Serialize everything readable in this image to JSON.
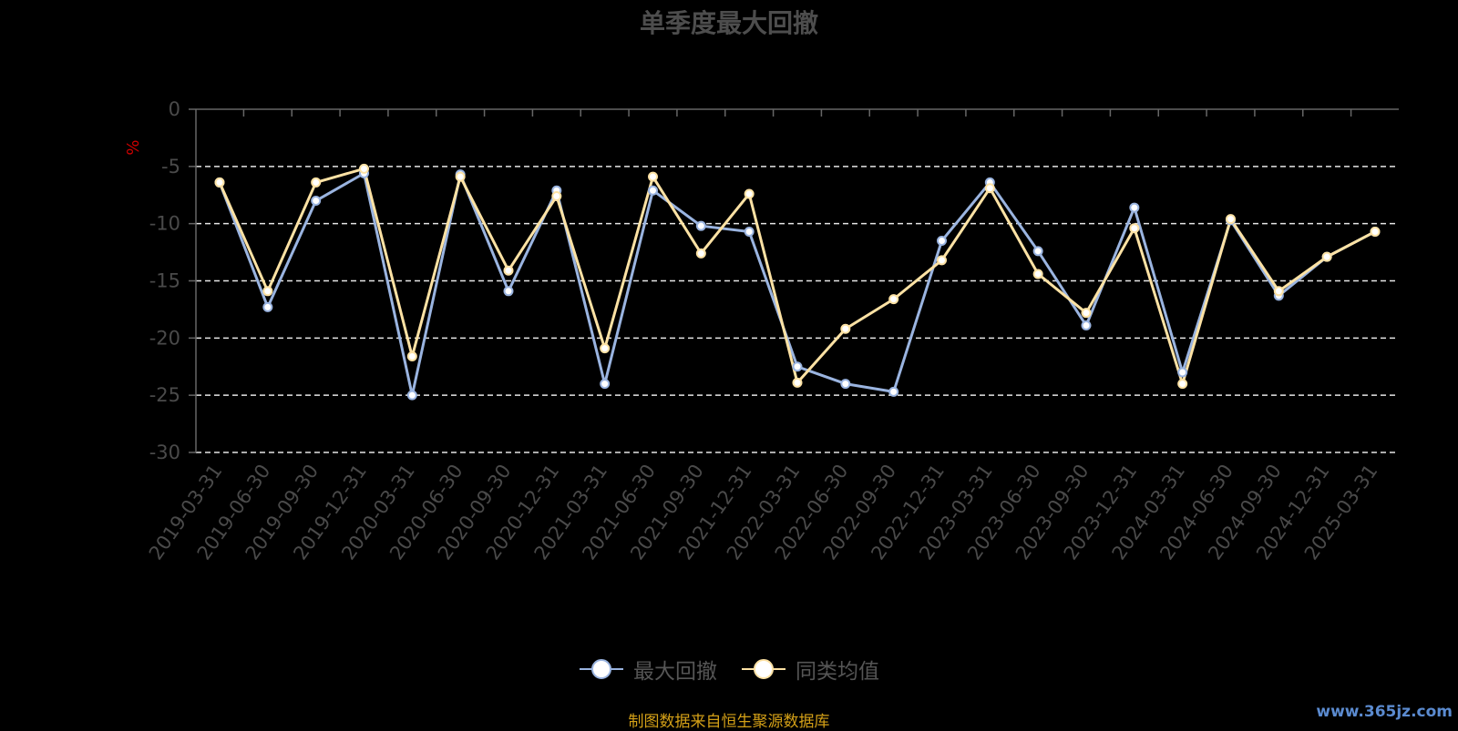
{
  "chart_data": {
    "type": "line",
    "title": "单季度最大回撤",
    "ylabel": "%",
    "ylim": [
      -30,
      0
    ],
    "yticks": [
      0,
      -5,
      -10,
      -15,
      -20,
      -25,
      -30
    ],
    "grid": true,
    "legend_position": "bottom",
    "x": [
      "2019-03-31",
      "2019-06-30",
      "2019-09-30",
      "2019-12-31",
      "2020-03-31",
      "2020-06-30",
      "2020-09-30",
      "2020-12-31",
      "2021-03-31",
      "2021-06-30",
      "2021-09-30",
      "2021-12-31",
      "2022-03-31",
      "2022-06-30",
      "2022-09-30",
      "2022-12-31",
      "2023-03-31",
      "2023-06-30",
      "2023-09-30",
      "2023-12-31",
      "2024-03-31",
      "2024-06-30",
      "2024-09-30",
      "2024-12-31",
      "2025-03-31"
    ],
    "series": [
      {
        "name": "最大回撤",
        "color": "#9ab4e0",
        "values": [
          -6.4,
          -17.3,
          -8.0,
          -5.6,
          -25.0,
          -5.7,
          -15.9,
          -7.1,
          -24.0,
          -7.1,
          -10.2,
          -10.7,
          -22.5,
          -24.0,
          -24.7,
          -11.5,
          -6.4,
          -12.4,
          -18.9,
          -8.6,
          -23.0,
          -9.7,
          -16.3,
          -12.9,
          -10.7
        ]
      },
      {
        "name": "同类均值",
        "color": "#fde2a4",
        "values": [
          -6.4,
          -15.9,
          -6.4,
          -5.2,
          -21.6,
          -5.9,
          -14.1,
          -7.6,
          -20.9,
          -5.9,
          -12.6,
          -7.4,
          -23.9,
          -19.2,
          -16.6,
          -13.2,
          -6.9,
          -14.4,
          -17.8,
          -10.4,
          -24.0,
          -9.6,
          -15.9,
          -12.9,
          -10.7
        ]
      }
    ]
  },
  "source_note": "制图数据来自恒生聚源数据库",
  "watermark": "www.365jz.com"
}
